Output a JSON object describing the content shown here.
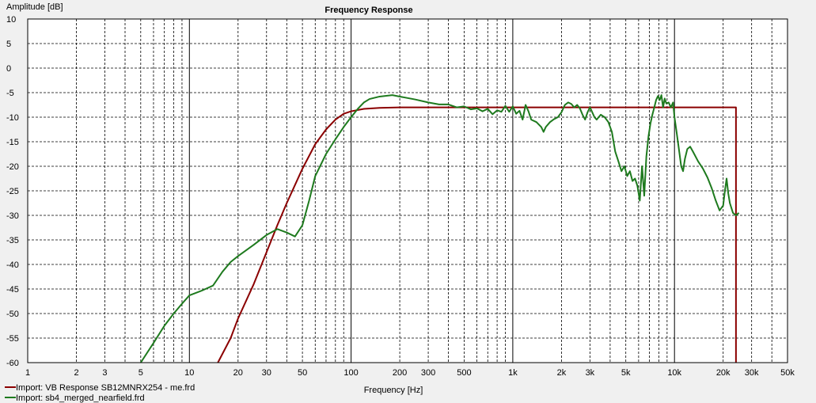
{
  "chart_data": {
    "type": "line",
    "title": "Frequency Response",
    "ylabel": "Amplitude [dB]",
    "xlabel": "Frequency [Hz]",
    "xscale": "log",
    "xlim": [
      1,
      50000
    ],
    "ylim": [
      -60,
      10
    ],
    "grid": true,
    "legend_position": "bottom-left",
    "y_ticks": [
      10,
      5,
      0,
      -5,
      -10,
      -15,
      -20,
      -25,
      -30,
      -35,
      -40,
      -45,
      -50,
      -55,
      -60
    ],
    "x_ticks": [
      {
        "value": 1,
        "label": "1"
      },
      {
        "value": 2,
        "label": "2"
      },
      {
        "value": 3,
        "label": "3"
      },
      {
        "value": 5,
        "label": "5"
      },
      {
        "value": 10,
        "label": "10"
      },
      {
        "value": 20,
        "label": "20"
      },
      {
        "value": 30,
        "label": "30"
      },
      {
        "value": 50,
        "label": "50"
      },
      {
        "value": 100,
        "label": "100"
      },
      {
        "value": 200,
        "label": "200"
      },
      {
        "value": 300,
        "label": "300"
      },
      {
        "value": 500,
        "label": "500"
      },
      {
        "value": 1000,
        "label": "1k"
      },
      {
        "value": 2000,
        "label": "2k"
      },
      {
        "value": 3000,
        "label": "3k"
      },
      {
        "value": 5000,
        "label": "5k"
      },
      {
        "value": 10000,
        "label": "10k"
      },
      {
        "value": 20000,
        "label": "20k"
      },
      {
        "value": 30000,
        "label": "30k"
      },
      {
        "value": 50000,
        "label": "50k"
      }
    ],
    "series": [
      {
        "name": "Import: VB Response SB12MNRX254 - me.frd",
        "color": "#8b0000",
        "points": [
          [
            15,
            -60
          ],
          [
            18,
            -55
          ],
          [
            20,
            -51
          ],
          [
            25,
            -44
          ],
          [
            30,
            -37.5
          ],
          [
            35,
            -32
          ],
          [
            40,
            -27.5
          ],
          [
            50,
            -20.5
          ],
          [
            60,
            -15.5
          ],
          [
            70,
            -12.5
          ],
          [
            80,
            -10.5
          ],
          [
            90,
            -9.3
          ],
          [
            100,
            -8.8
          ],
          [
            120,
            -8.3
          ],
          [
            150,
            -8.1
          ],
          [
            200,
            -8
          ],
          [
            1000,
            -8
          ],
          [
            10000,
            -8
          ],
          [
            24000,
            -8
          ],
          [
            24000,
            -60
          ]
        ]
      },
      {
        "name": "Import: sb4_merged_nearfield.frd",
        "color": "#1e7a1e",
        "points": [
          [
            5,
            -60
          ],
          [
            6,
            -56
          ],
          [
            7,
            -52.5
          ],
          [
            8,
            -50
          ],
          [
            9,
            -48
          ],
          [
            10,
            -46.3
          ],
          [
            12,
            -45.3
          ],
          [
            14,
            -44.3
          ],
          [
            16,
            -41.5
          ],
          [
            18,
            -39.5
          ],
          [
            20,
            -38.3
          ],
          [
            25,
            -36
          ],
          [
            30,
            -34
          ],
          [
            35,
            -32.8
          ],
          [
            40,
            -33.5
          ],
          [
            45,
            -34.3
          ],
          [
            50,
            -32
          ],
          [
            55,
            -27
          ],
          [
            60,
            -22
          ],
          [
            70,
            -17.5
          ],
          [
            80,
            -14.5
          ],
          [
            90,
            -12
          ],
          [
            100,
            -10
          ],
          [
            110,
            -8.3
          ],
          [
            120,
            -7
          ],
          [
            130,
            -6.3
          ],
          [
            150,
            -5.8
          ],
          [
            180,
            -5.5
          ],
          [
            200,
            -5.8
          ],
          [
            250,
            -6.4
          ],
          [
            300,
            -7
          ],
          [
            350,
            -7.4
          ],
          [
            400,
            -7.4
          ],
          [
            450,
            -8
          ],
          [
            500,
            -7.8
          ],
          [
            550,
            -8.4
          ],
          [
            600,
            -8.2
          ],
          [
            650,
            -8.8
          ],
          [
            700,
            -8.3
          ],
          [
            750,
            -9.4
          ],
          [
            800,
            -8.6
          ],
          [
            850,
            -8.9
          ],
          [
            900,
            -7.7
          ],
          [
            950,
            -8.9
          ],
          [
            1000,
            -7.8
          ],
          [
            1050,
            -9.3
          ],
          [
            1100,
            -8.7
          ],
          [
            1150,
            -10.5
          ],
          [
            1200,
            -7.5
          ],
          [
            1250,
            -8.8
          ],
          [
            1300,
            -10.5
          ],
          [
            1400,
            -11
          ],
          [
            1500,
            -12
          ],
          [
            1550,
            -13
          ],
          [
            1600,
            -12
          ],
          [
            1700,
            -11
          ],
          [
            1800,
            -10.4
          ],
          [
            1900,
            -10
          ],
          [
            2000,
            -9
          ],
          [
            2100,
            -7.5
          ],
          [
            2200,
            -7
          ],
          [
            2300,
            -7.3
          ],
          [
            2400,
            -8
          ],
          [
            2500,
            -7.5
          ],
          [
            2600,
            -8.2
          ],
          [
            2700,
            -9.5
          ],
          [
            2800,
            -10.5
          ],
          [
            2900,
            -9
          ],
          [
            3000,
            -8
          ],
          [
            3100,
            -9
          ],
          [
            3200,
            -10
          ],
          [
            3300,
            -10.5
          ],
          [
            3500,
            -9.5
          ],
          [
            3700,
            -10
          ],
          [
            3900,
            -11
          ],
          [
            4100,
            -13
          ],
          [
            4300,
            -17
          ],
          [
            4500,
            -19
          ],
          [
            4700,
            -21
          ],
          [
            4900,
            -20
          ],
          [
            5100,
            -22
          ],
          [
            5300,
            -21
          ],
          [
            5500,
            -23
          ],
          [
            5700,
            -22.5
          ],
          [
            5900,
            -24
          ],
          [
            6100,
            -27
          ],
          [
            6300,
            -20
          ],
          [
            6500,
            -26
          ],
          [
            6700,
            -18
          ],
          [
            6900,
            -14
          ],
          [
            7100,
            -11.3
          ],
          [
            7300,
            -9.5
          ],
          [
            7500,
            -8
          ],
          [
            7700,
            -6.5
          ],
          [
            7900,
            -5.7
          ],
          [
            8100,
            -6.5
          ],
          [
            8300,
            -5.5
          ],
          [
            8500,
            -8
          ],
          [
            8700,
            -6.2
          ],
          [
            8900,
            -7.2
          ],
          [
            9200,
            -7
          ],
          [
            9500,
            -8
          ],
          [
            9800,
            -7
          ],
          [
            10000,
            -10
          ],
          [
            10300,
            -13
          ],
          [
            10600,
            -16
          ],
          [
            11000,
            -20
          ],
          [
            11300,
            -21
          ],
          [
            11600,
            -18.5
          ],
          [
            12000,
            -16.5
          ],
          [
            12500,
            -16
          ],
          [
            13000,
            -17
          ],
          [
            14000,
            -19
          ],
          [
            15000,
            -20.5
          ],
          [
            16000,
            -22.3
          ],
          [
            17000,
            -24.5
          ],
          [
            18000,
            -27
          ],
          [
            19000,
            -29
          ],
          [
            20000,
            -28
          ],
          [
            20500,
            -25
          ],
          [
            21000,
            -22.5
          ],
          [
            21500,
            -25.5
          ],
          [
            22000,
            -27.5
          ],
          [
            23000,
            -29.5
          ],
          [
            24000,
            -30
          ],
          [
            25000,
            -29.5
          ]
        ]
      }
    ]
  }
}
